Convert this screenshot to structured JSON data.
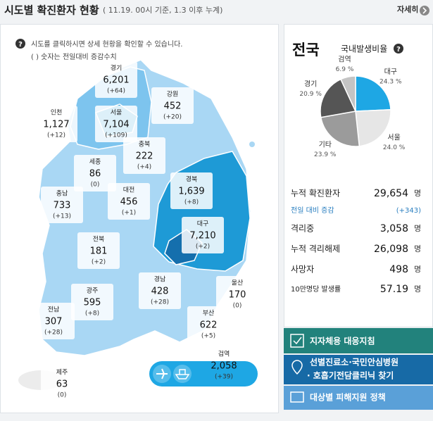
{
  "header": {
    "title": "시도별 확진환자 현황",
    "subtitle": "( 11.19. 00시 기준, 1.3 이후 누계)",
    "more": "자세히"
  },
  "help": {
    "line1": "시도를 클릭하시면 상세 현황을 확인할 수 있습니다.",
    "line2": "( ) 숫자는 전일대비 증감수치"
  },
  "map": {
    "regions": [
      {
        "name": "경기",
        "count": "6,201",
        "delta": "(+64)"
      },
      {
        "name": "강원",
        "count": "452",
        "delta": "(+20)"
      },
      {
        "name": "인천",
        "count": "1,127",
        "delta": "(+12)"
      },
      {
        "name": "서울",
        "count": "7,104",
        "delta": "(+109)"
      },
      {
        "name": "충북",
        "count": "222",
        "delta": "(+4)"
      },
      {
        "name": "세종",
        "count": "86",
        "delta": "(0)"
      },
      {
        "name": "충남",
        "count": "733",
        "delta": "(+13)"
      },
      {
        "name": "대전",
        "count": "456",
        "delta": "(+1)"
      },
      {
        "name": "경북",
        "count": "1,639",
        "delta": "(+8)"
      },
      {
        "name": "대구",
        "count": "7,210",
        "delta": "(+2)"
      },
      {
        "name": "전북",
        "count": "181",
        "delta": "(+2)"
      },
      {
        "name": "경남",
        "count": "428",
        "delta": "(+28)"
      },
      {
        "name": "울산",
        "count": "170",
        "delta": "(0)"
      },
      {
        "name": "광주",
        "count": "595",
        "delta": "(+8)"
      },
      {
        "name": "전남",
        "count": "307",
        "delta": "(+28)"
      },
      {
        "name": "부산",
        "count": "622",
        "delta": "(+5)"
      },
      {
        "name": "제주",
        "count": "63",
        "delta": "(0)"
      },
      {
        "name": "검역",
        "count": "2,058",
        "delta": "(+39)"
      }
    ]
  },
  "summary": {
    "title": "전국",
    "rows": [
      {
        "label": "누적 확진환자",
        "value": "29,654",
        "unit": "명"
      },
      {
        "label": "전일 대비 증감",
        "value": "(+343)"
      },
      {
        "label": "격리중",
        "value": "3,058",
        "unit": "명"
      },
      {
        "label": "누적 격리해제",
        "value": "26,098",
        "unit": "명"
      },
      {
        "label": "사망자",
        "value": "498",
        "unit": "명"
      },
      {
        "label": "10만명당 발생률",
        "value": "57.19",
        "unit": "명"
      }
    ]
  },
  "chart_data": {
    "type": "pie",
    "title": "국내발생비율",
    "categories": [
      "대구",
      "서울",
      "기타",
      "경기",
      "검역"
    ],
    "values": [
      24.3,
      24.0,
      23.9,
      20.9,
      6.9
    ],
    "value_labels": [
      "24.3 %",
      "24.0 %",
      "23.9 %",
      "20.9 %",
      "6.9 %"
    ],
    "colors": [
      "#1ea7e4",
      "#e6e6e6",
      "#9b9b9b",
      "#555555",
      "#c4c4c4"
    ]
  },
  "links": [
    "지자체용 대응지침",
    "선별진료소·국민안심병원",
    "· 호흡기전담클리닉 찾기",
    "대상별 피해지원 정책"
  ]
}
